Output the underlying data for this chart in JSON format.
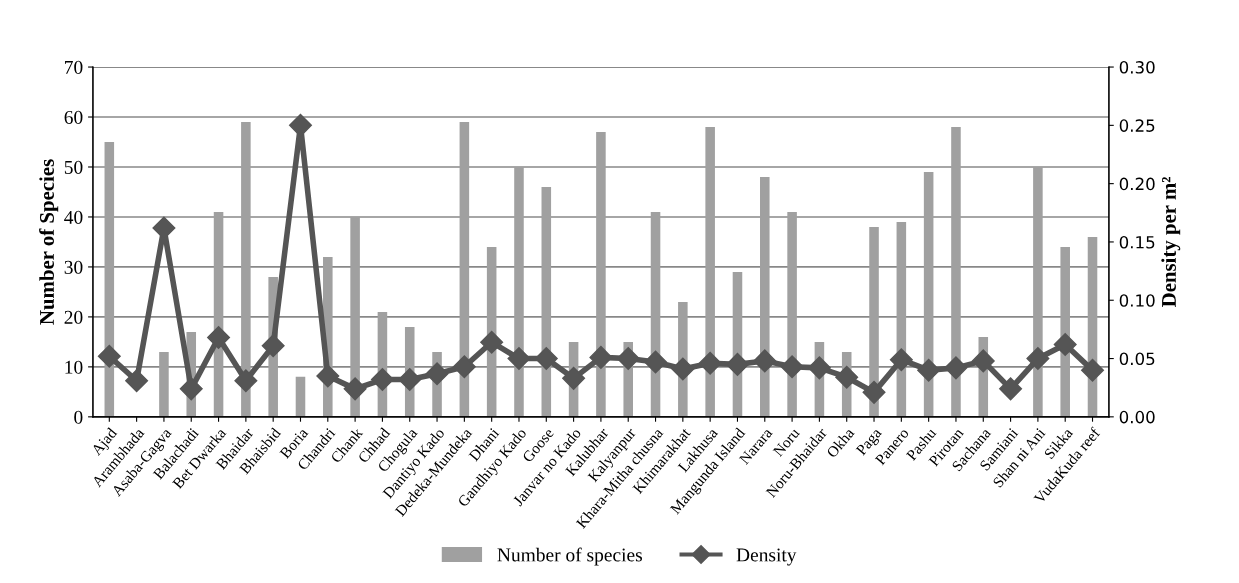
{
  "chart_data": {
    "type": "bar",
    "ylabel": "Number of Species",
    "y2label": "Density per m²",
    "categories": [
      "Ajad",
      "Arambhada",
      "Asaba-Gagva",
      "Balachadi",
      "Bet Dwarka",
      "Bhaidar",
      "Bhaisbid",
      "Boria",
      "Chandri",
      "Chank",
      "Chhad",
      "Chogula",
      "Dantiyo Kado",
      "Dedeka-Mundeka",
      "Dhani",
      "Gandhiyo Kado",
      "Goose",
      "Janvar no Kado",
      "Kalubhar",
      "Kalyanpur",
      "Khara-Mitha chusna",
      "Khimarakhat",
      "Lakhusa",
      "Mangunda Island",
      "Narara",
      "Noru",
      "Noru-Bhaidar",
      "Okha",
      "Paga",
      "Panero",
      "Pashu",
      "Pirotan",
      "Sachana",
      "Samiani",
      "Shan ni Ani",
      "Sikka",
      "VudaKuda reef"
    ],
    "series": [
      {
        "name": "Number of species",
        "color": "#a0a0a0",
        "values": [
          55,
          null,
          13,
          17,
          41,
          59,
          28,
          8,
          32,
          40,
          21,
          18,
          13,
          59,
          34,
          50,
          46,
          15,
          57,
          15,
          41,
          23,
          58,
          29,
          48,
          41,
          15,
          13,
          38,
          39,
          49,
          58,
          16,
          null,
          50,
          34,
          36
        ]
      },
      {
        "name": "Density",
        "type": "line",
        "axis": "y2",
        "color": "#555555",
        "marker": "diamond",
        "values": [
          0.052,
          0.031,
          0.162,
          0.024,
          0.068,
          0.031,
          0.061,
          0.25,
          0.035,
          0.024,
          0.032,
          0.032,
          0.037,
          0.043,
          0.064,
          0.05,
          0.05,
          0.033,
          0.051,
          0.05,
          0.047,
          0.041,
          0.046,
          0.045,
          0.048,
          0.043,
          0.042,
          0.034,
          0.021,
          0.049,
          0.04,
          0.042,
          0.048,
          0.024,
          0.05,
          0.062,
          0.04
        ]
      }
    ],
    "ylim": [
      0,
      70
    ],
    "yticks": [
      0,
      10,
      20,
      30,
      40,
      50,
      60,
      70
    ],
    "y2lim": [
      0,
      0.3
    ],
    "y2ticks": [
      {
        "value": 0,
        "label": "0.00"
      },
      {
        "value": 0.05,
        "label": "0.05"
      },
      {
        "value": 0.1,
        "label": "0.10"
      },
      {
        "value": 0.15,
        "label": "0.15"
      },
      {
        "value": 0.2,
        "label": "0.20"
      },
      {
        "value": 0.25,
        "label": "0.25"
      },
      {
        "value": 0.3,
        "label": "0.30"
      }
    ],
    "grid": "y",
    "legend": "bottom"
  }
}
